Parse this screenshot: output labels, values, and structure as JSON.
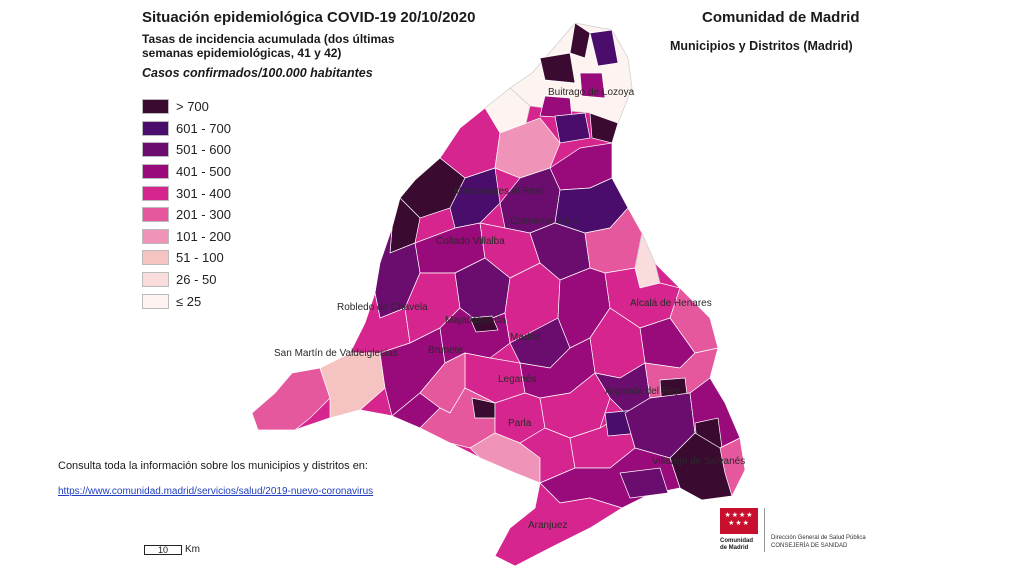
{
  "header": {
    "title": "Situación epidemiológica COVID-19  20/10/2020",
    "subtitle": "Tasas de incidencia acumulada (dos últimas semanas epidemiológicas, 41 y 42)",
    "units": "Casos confirmados/100.000 habitantes",
    "region": "Comunidad de Madrid",
    "scope": "Municipios y Distritos (Madrid)"
  },
  "legend": [
    {
      "label": "> 700",
      "color": "#3a0a30"
    },
    {
      "label": "601 - 700",
      "color": "#4a0d6b"
    },
    {
      "label": "501 - 600",
      "color": "#6b0d6f"
    },
    {
      "label": "401 - 500",
      "color": "#990a7a"
    },
    {
      "label": "301 - 400",
      "color": "#d6258e"
    },
    {
      "label": "201 - 300",
      "color": "#e6589e"
    },
    {
      "label": "101 - 200",
      "color": "#ef94b8"
    },
    {
      "label": "51 - 100",
      "color": "#f6c3c3"
    },
    {
      "label": "26 - 50",
      "color": "#f9dcdc"
    },
    {
      "label": "≤ 25",
      "color": "#fdf4f1"
    }
  ],
  "map": {
    "labels": {
      "buitrago": "Buitrago de Lozoya",
      "manzanares": "Manzanares el Real",
      "colmenar": "Colmenar Viejo",
      "collado": "Collado Villalba",
      "robledo": "Robledo de Chavela",
      "sanmartin": "San Martín de Valdeiglesias",
      "majadahonda": "Majadahonda",
      "madrid": "Madrid",
      "brunete": "Brunete",
      "leganes": "Leganés",
      "alcala": "Alcalá de Henares",
      "arganda": "Arganda del Rey",
      "parla": "Parla",
      "villarejo": "Villarejo de Salvanés",
      "aranjuez": "Aranjuez"
    }
  },
  "footer": {
    "note": "Consulta toda la información sobre los municipios y distritos en:",
    "link": "https://www.comunidad.madrid/servicios/salud/2019-nuevo-coronavirus",
    "scale_value": "10",
    "scale_unit": "Km"
  },
  "logo": {
    "name": "Comunidad de Madrid",
    "dept_line1": "Dirección General de Salud Pública",
    "dept_line2": "CONSEJERÍA DE SANIDAD"
  }
}
